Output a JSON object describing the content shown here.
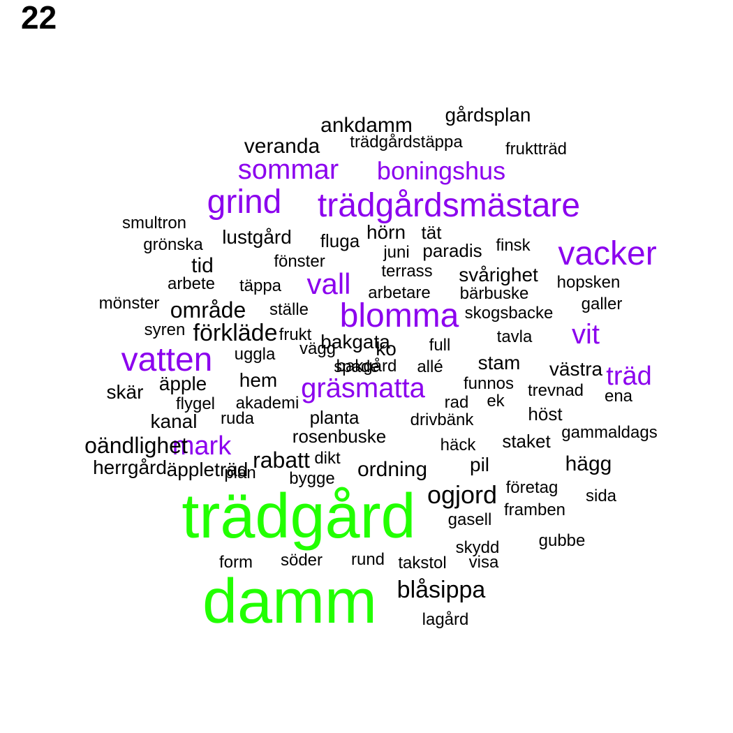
{
  "page_number": "22",
  "colors": {
    "large": "#22ff00",
    "medium": "#8b00ee",
    "small": "#000000"
  },
  "words": [
    {
      "text": "trädgård",
      "group": "large"
    },
    {
      "text": "damm",
      "group": "large"
    },
    {
      "text": "trädgårdsmästare",
      "group": "medium"
    },
    {
      "text": "vacker",
      "group": "medium"
    },
    {
      "text": "blomma",
      "group": "medium"
    },
    {
      "text": "vatten",
      "group": "medium"
    },
    {
      "text": "grind",
      "group": "medium"
    },
    {
      "text": "sommar",
      "group": "medium"
    },
    {
      "text": "boningshus",
      "group": "medium"
    },
    {
      "text": "gräsmatta",
      "group": "medium"
    },
    {
      "text": "vall",
      "group": "medium"
    },
    {
      "text": "vit",
      "group": "medium"
    },
    {
      "text": "träd",
      "group": "medium"
    },
    {
      "text": "mark",
      "group": "medium"
    },
    {
      "text": "gårdsplan",
      "group": "small"
    },
    {
      "text": "ankdamm",
      "group": "small"
    },
    {
      "text": "trädgårdstäppa",
      "group": "small"
    },
    {
      "text": "veranda",
      "group": "small"
    },
    {
      "text": "fruktträd",
      "group": "small"
    },
    {
      "text": "smultron",
      "group": "small"
    },
    {
      "text": "lustgård",
      "group": "small"
    },
    {
      "text": "hörn",
      "group": "small"
    },
    {
      "text": "tät",
      "group": "small"
    },
    {
      "text": "fluga",
      "group": "small"
    },
    {
      "text": "grönska",
      "group": "small"
    },
    {
      "text": "paradis",
      "group": "small"
    },
    {
      "text": "finsk",
      "group": "small"
    },
    {
      "text": "juni",
      "group": "small"
    },
    {
      "text": "tid",
      "group": "small"
    },
    {
      "text": "fönster",
      "group": "small"
    },
    {
      "text": "terrass",
      "group": "small"
    },
    {
      "text": "svårighet",
      "group": "small"
    },
    {
      "text": "arbete",
      "group": "small"
    },
    {
      "text": "täppa",
      "group": "small"
    },
    {
      "text": "hopsken",
      "group": "small"
    },
    {
      "text": "arbetare",
      "group": "small"
    },
    {
      "text": "bärbuske",
      "group": "small"
    },
    {
      "text": "mönster",
      "group": "small"
    },
    {
      "text": "område",
      "group": "small"
    },
    {
      "text": "ställe",
      "group": "small"
    },
    {
      "text": "galler",
      "group": "small"
    },
    {
      "text": "skogsbacke",
      "group": "small"
    },
    {
      "text": "syren",
      "group": "small"
    },
    {
      "text": "förkläde",
      "group": "small"
    },
    {
      "text": "frukt",
      "group": "small"
    },
    {
      "text": "tavla",
      "group": "small"
    },
    {
      "text": "bakgata",
      "group": "small"
    },
    {
      "text": "ko",
      "group": "small"
    },
    {
      "text": "full",
      "group": "small"
    },
    {
      "text": "vägg",
      "group": "small"
    },
    {
      "text": "uggla",
      "group": "small"
    },
    {
      "text": "stam",
      "group": "small"
    },
    {
      "text": "spade",
      "group": "small"
    },
    {
      "text": "allé",
      "group": "small"
    },
    {
      "text": "västra",
      "group": "small"
    },
    {
      "text": "hem",
      "group": "small"
    },
    {
      "text": "äpple",
      "group": "small"
    },
    {
      "text": "funnos",
      "group": "small"
    },
    {
      "text": "trevnad",
      "group": "small"
    },
    {
      "text": "skär",
      "group": "small"
    },
    {
      "text": "ena",
      "group": "small"
    },
    {
      "text": "flygel",
      "group": "small"
    },
    {
      "text": "akademi",
      "group": "small"
    },
    {
      "text": "rad",
      "group": "small"
    },
    {
      "text": "ek",
      "group": "small"
    },
    {
      "text": "höst",
      "group": "small"
    },
    {
      "text": "kanal",
      "group": "small"
    },
    {
      "text": "ruda",
      "group": "small"
    },
    {
      "text": "planta",
      "group": "small"
    },
    {
      "text": "drivbänk",
      "group": "small"
    },
    {
      "text": "rosenbuske",
      "group": "small"
    },
    {
      "text": "gammaldags",
      "group": "small"
    },
    {
      "text": "oändlighet",
      "group": "small"
    },
    {
      "text": "häck",
      "group": "small"
    },
    {
      "text": "staket",
      "group": "small"
    },
    {
      "text": "rabatt",
      "group": "small"
    },
    {
      "text": "dikt",
      "group": "small"
    },
    {
      "text": "hägg",
      "group": "small"
    },
    {
      "text": "herrgård",
      "group": "small"
    },
    {
      "text": "äppleträd",
      "group": "small"
    },
    {
      "text": "plan",
      "group": "small"
    },
    {
      "text": "pil",
      "group": "small"
    },
    {
      "text": "ordning",
      "group": "small"
    },
    {
      "text": "bygge",
      "group": "small"
    },
    {
      "text": "företag",
      "group": "small"
    },
    {
      "text": "ogjord",
      "group": "small"
    },
    {
      "text": "sida",
      "group": "small"
    },
    {
      "text": "framben",
      "group": "small"
    },
    {
      "text": "gasell",
      "group": "small"
    },
    {
      "text": "gubbe",
      "group": "small"
    },
    {
      "text": "skydd",
      "group": "small"
    },
    {
      "text": "rund",
      "group": "small"
    },
    {
      "text": "form",
      "group": "small"
    },
    {
      "text": "söder",
      "group": "small"
    },
    {
      "text": "takstol",
      "group": "small"
    },
    {
      "text": "visa",
      "group": "small"
    },
    {
      "text": "blåsippa",
      "group": "small"
    },
    {
      "text": "lagård",
      "group": "small"
    },
    {
      "text": "bakgård",
      "group": "small"
    }
  ]
}
